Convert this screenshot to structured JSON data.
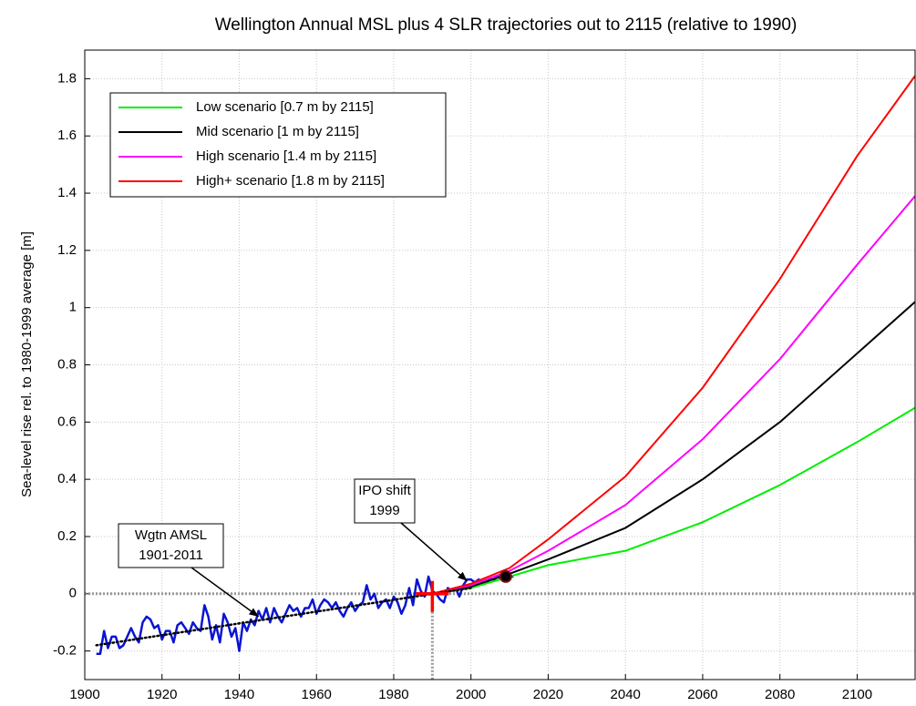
{
  "chart_data": {
    "type": "line",
    "title": "Wellington Annual MSL plus 4 SLR trajectories out to 2115 (relative to 1990)",
    "y_label": "Sea-level rise rel. to 1980-1999 average [m]",
    "xlim": [
      1900,
      2115
    ],
    "ylim": [
      -0.3,
      1.9
    ],
    "xticks": [
      1900,
      1920,
      1940,
      1960,
      1980,
      2000,
      2020,
      2040,
      2060,
      2080,
      2100
    ],
    "yticks": [
      -0.2,
      0,
      0.2,
      0.4,
      0.6,
      0.8,
      1,
      1.2,
      1.4,
      1.6,
      1.8
    ],
    "grid": true,
    "legend": "upper left",
    "series": [
      {
        "color": "#0a14d2",
        "style": "solid",
        "width": 2.5,
        "x": [
          1903,
          1904,
          1905,
          1906,
          1907,
          1908,
          1909,
          1910,
          1911,
          1912,
          1913,
          1914,
          1915,
          1916,
          1917,
          1918,
          1919,
          1920,
          1921,
          1922,
          1923,
          1924,
          1925,
          1926,
          1927,
          1928,
          1929,
          1930,
          1931,
          1932,
          1933,
          1934,
          1935,
          1936,
          1937,
          1938,
          1939,
          1940,
          1941,
          1942,
          1943,
          1944,
          1945,
          1946,
          1947,
          1948,
          1949,
          1950,
          1951,
          1952,
          1953,
          1954,
          1955,
          1956,
          1957,
          1958,
          1959,
          1960,
          1961,
          1962,
          1963,
          1964,
          1965,
          1966,
          1967,
          1968,
          1969,
          1970,
          1971,
          1972,
          1973,
          1974,
          1975,
          1976,
          1977,
          1978,
          1979,
          1980,
          1981,
          1982,
          1983,
          1984,
          1985,
          1986,
          1987,
          1988,
          1989,
          1990,
          1991,
          1992,
          1993,
          1994,
          1995,
          1996,
          1997,
          1998,
          1999,
          2000,
          2001,
          2002,
          2003,
          2004,
          2005,
          2006,
          2007,
          2008,
          2009,
          2010,
          2011
        ],
        "values": [
          -0.21,
          -0.21,
          -0.13,
          -0.19,
          -0.15,
          -0.15,
          -0.19,
          -0.18,
          -0.15,
          -0.12,
          -0.15,
          -0.17,
          -0.1,
          -0.08,
          -0.09,
          -0.12,
          -0.11,
          -0.16,
          -0.13,
          -0.13,
          -0.17,
          -0.11,
          -0.1,
          -0.12,
          -0.14,
          -0.1,
          -0.12,
          -0.13,
          -0.04,
          -0.08,
          -0.16,
          -0.11,
          -0.17,
          -0.07,
          -0.1,
          -0.15,
          -0.12,
          -0.2,
          -0.1,
          -0.13,
          -0.09,
          -0.11,
          -0.06,
          -0.09,
          -0.05,
          -0.1,
          -0.05,
          -0.08,
          -0.1,
          -0.07,
          -0.04,
          -0.06,
          -0.05,
          -0.08,
          -0.05,
          -0.05,
          -0.02,
          -0.07,
          -0.04,
          -0.02,
          -0.03,
          -0.05,
          -0.03,
          -0.06,
          -0.08,
          -0.05,
          -0.03,
          -0.06,
          -0.04,
          -0.03,
          0.03,
          -0.02,
          0.0,
          -0.05,
          -0.03,
          -0.02,
          -0.05,
          -0.01,
          -0.03,
          -0.07,
          -0.04,
          0.02,
          -0.04,
          0.05,
          0.01,
          -0.01,
          0.06,
          0.01,
          0.0,
          -0.02,
          -0.03,
          0.02,
          0.01,
          0.02,
          -0.01,
          0.03,
          0.05,
          0.05,
          0.04,
          0.05,
          0.04,
          0.04,
          0.05,
          0.05,
          0.06,
          0.05,
          0.06,
          0.06,
          0.06
        ]
      },
      {
        "color": "#000000",
        "style": "dotted",
        "width": 2.5,
        "x": [
          1903,
          2000
        ],
        "values": [
          -0.18,
          0.02
        ]
      },
      {
        "name": "Low scenario [0.7 m by 2115]",
        "color": "#00ee00",
        "style": "solid",
        "width": 2,
        "x": [
          1990,
          2000,
          2010,
          2020,
          2040,
          2060,
          2080,
          2100,
          2115
        ],
        "values": [
          0,
          0.02,
          0.06,
          0.1,
          0.15,
          0.25,
          0.38,
          0.53,
          0.65
        ]
      },
      {
        "name": "Mid scenario [1 m by 2115]",
        "color": "#000000",
        "style": "solid",
        "width": 2,
        "x": [
          1990,
          2000,
          2010,
          2020,
          2040,
          2060,
          2080,
          2100,
          2115
        ],
        "values": [
          0,
          0.025,
          0.07,
          0.12,
          0.23,
          0.4,
          0.6,
          0.84,
          1.02
        ]
      },
      {
        "name": "High scenario [1.4 m by 2115]",
        "color": "#ff00ff",
        "style": "solid",
        "width": 2,
        "x": [
          1990,
          2000,
          2010,
          2020,
          2040,
          2060,
          2080,
          2100,
          2115
        ],
        "values": [
          0,
          0.03,
          0.08,
          0.15,
          0.31,
          0.54,
          0.82,
          1.15,
          1.39
        ]
      },
      {
        "name": "High+ scenario [1.8 m by 2115]",
        "color": "#ff0000",
        "style": "solid",
        "width": 2,
        "x": [
          1990,
          2000,
          2010,
          2020,
          2040,
          2060,
          2080,
          2100,
          2115
        ],
        "values": [
          0,
          0.035,
          0.09,
          0.19,
          0.41,
          0.72,
          1.1,
          1.53,
          1.81
        ]
      }
    ],
    "reference_lines": {
      "x": 1990,
      "y": 0
    },
    "markers": [
      {
        "x": 1990,
        "y": 0,
        "color": "#ff0000",
        "shape": "cross"
      },
      {
        "x": 2009,
        "y": 0.06,
        "color": "#000000",
        "shape": "dot"
      }
    ],
    "annotations": [
      {
        "lines": [
          "Wgtn AMSL",
          "1901-2011"
        ]
      },
      {
        "lines": [
          "IPO shift",
          "1999"
        ]
      }
    ]
  }
}
